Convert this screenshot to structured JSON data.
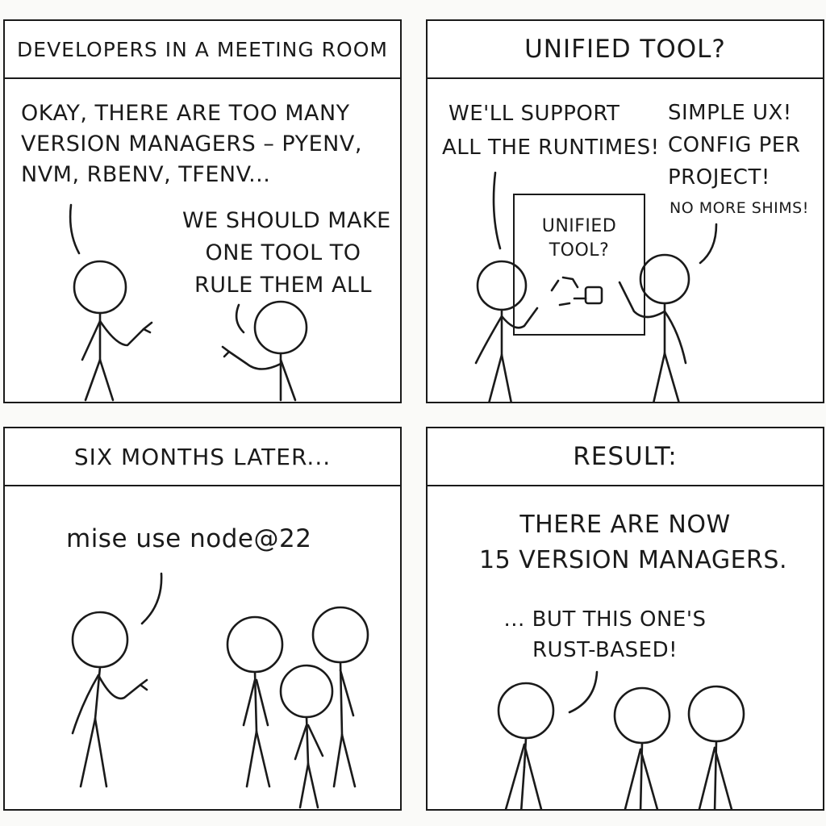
{
  "panels": [
    {
      "caption": "DEVELOPERS IN A MEETING ROOM",
      "speech_1": [
        "OKAY, THERE ARE TOO MANY",
        "VERSION MANAGERS – PYENV,",
        "NVM, RBENV, TFENV..."
      ],
      "speech_2": [
        "WE SHOULD MAKE",
        "ONE TOOL TO",
        "RULE THEM ALL"
      ]
    },
    {
      "caption": "UNIFIED TOOL?",
      "speech_left": [
        "WE'LL SUPPORT",
        "ALL THE RUNTIMES!"
      ],
      "speech_right": [
        "SIMPLE UX!",
        "CONFIG PER",
        "PROJECT!"
      ],
      "speech_right_small": "NO MORE SHIMS!",
      "whiteboard": [
        "UNIFIED",
        "TOOL?"
      ]
    },
    {
      "caption": "SIX MONTHS LATER...",
      "speech": "mise use node@22"
    },
    {
      "caption": "RESULT:",
      "narration": [
        "THERE ARE NOW",
        "15 VERSION MANAGERS."
      ],
      "speech": [
        "... BUT THIS ONE'S",
        "RUST-BASED!"
      ]
    }
  ]
}
